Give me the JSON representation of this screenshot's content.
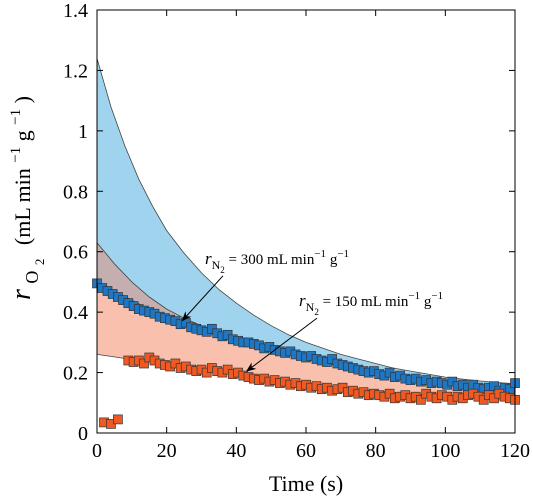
{
  "chart_data": {
    "type": "scatter",
    "xlabel": "Time (s)",
    "ylabel": {
      "main": "r",
      "sub": "O",
      "subsub": "2",
      "unit_prefix": "(mL min",
      "unit_exp1": "−1",
      "unit_mid": " g",
      "unit_exp2": "−1",
      "unit_suffix": ")"
    },
    "xlim": [
      0,
      120
    ],
    "ylim": [
      0,
      1.4
    ],
    "x_ticks": [
      "0",
      "20",
      "40",
      "60",
      "80",
      "100",
      "120"
    ],
    "y_ticks": [
      "0",
      "0.2",
      "0.4",
      "0.6",
      "0.8",
      "1",
      "1.2",
      "1.4"
    ],
    "grid": false,
    "colors": {
      "series_300": "#1f77c4",
      "series_150": "#f05a22",
      "band_300": "#9fd3ee",
      "band_150": "#f9c1ad",
      "band_overlap": "#c4aeb0"
    },
    "bands": [
      {
        "name_ref": "300",
        "upper": [
          [
            0,
            1.24
          ],
          [
            4,
            1.08
          ],
          [
            8,
            0.95
          ],
          [
            12,
            0.84
          ],
          [
            16,
            0.75
          ],
          [
            20,
            0.67
          ],
          [
            25,
            0.595
          ],
          [
            30,
            0.53
          ],
          [
            35,
            0.475
          ],
          [
            40,
            0.43
          ],
          [
            45,
            0.39
          ],
          [
            50,
            0.355
          ],
          [
            55,
            0.325
          ],
          [
            60,
            0.3
          ],
          [
            65,
            0.28
          ],
          [
            70,
            0.26
          ],
          [
            75,
            0.245
          ],
          [
            80,
            0.23
          ],
          [
            85,
            0.215
          ],
          [
            90,
            0.205
          ],
          [
            95,
            0.195
          ],
          [
            100,
            0.185
          ],
          [
            105,
            0.178
          ],
          [
            110,
            0.172
          ],
          [
            115,
            0.167
          ],
          [
            120,
            0.162
          ]
        ],
        "lower": [
          [
            0,
            0.5
          ],
          [
            5,
            0.47
          ],
          [
            10,
            0.44
          ],
          [
            15,
            0.41
          ],
          [
            20,
            0.385
          ],
          [
            25,
            0.36
          ],
          [
            30,
            0.34
          ],
          [
            35,
            0.32
          ],
          [
            40,
            0.3
          ],
          [
            45,
            0.285
          ],
          [
            50,
            0.27
          ],
          [
            55,
            0.258
          ],
          [
            60,
            0.245
          ],
          [
            65,
            0.233
          ],
          [
            70,
            0.222
          ],
          [
            75,
            0.212
          ],
          [
            80,
            0.2
          ],
          [
            85,
            0.19
          ],
          [
            90,
            0.182
          ],
          [
            95,
            0.175
          ],
          [
            100,
            0.168
          ],
          [
            105,
            0.162
          ],
          [
            110,
            0.156
          ],
          [
            115,
            0.15
          ],
          [
            120,
            0.145
          ]
        ]
      },
      {
        "name_ref": "150",
        "upper": [
          [
            0,
            0.63
          ],
          [
            5,
            0.56
          ],
          [
            10,
            0.5
          ],
          [
            15,
            0.45
          ],
          [
            20,
            0.41
          ],
          [
            25,
            0.38
          ],
          [
            30,
            0.355
          ],
          [
            35,
            0.33
          ],
          [
            40,
            0.31
          ],
          [
            45,
            0.29
          ],
          [
            50,
            0.273
          ],
          [
            55,
            0.258
          ],
          [
            60,
            0.245
          ],
          [
            65,
            0.232
          ],
          [
            70,
            0.22
          ],
          [
            75,
            0.21
          ],
          [
            80,
            0.2
          ],
          [
            85,
            0.19
          ],
          [
            90,
            0.182
          ],
          [
            95,
            0.175
          ],
          [
            100,
            0.168
          ],
          [
            105,
            0.162
          ],
          [
            110,
            0.156
          ],
          [
            115,
            0.15
          ],
          [
            120,
            0.145
          ]
        ],
        "lower": [
          [
            0,
            0.26
          ],
          [
            5,
            0.252
          ],
          [
            10,
            0.243
          ],
          [
            15,
            0.235
          ],
          [
            20,
            0.226
          ],
          [
            25,
            0.218
          ],
          [
            30,
            0.21
          ],
          [
            35,
            0.202
          ],
          [
            40,
            0.194
          ],
          [
            45,
            0.186
          ],
          [
            50,
            0.178
          ],
          [
            55,
            0.171
          ],
          [
            60,
            0.164
          ],
          [
            65,
            0.157
          ],
          [
            70,
            0.151
          ],
          [
            75,
            0.145
          ],
          [
            80,
            0.139
          ],
          [
            85,
            0.134
          ],
          [
            90,
            0.129
          ],
          [
            95,
            0.125
          ],
          [
            100,
            0.121
          ],
          [
            105,
            0.117
          ],
          [
            110,
            0.113
          ],
          [
            115,
            0.11
          ],
          [
            120,
            0.107
          ]
        ]
      }
    ],
    "series": [
      {
        "id": "300",
        "x": [
          0,
          1.5,
          3,
          4.5,
          6,
          7.5,
          9,
          10.5,
          12,
          13.5,
          15,
          16.5,
          18,
          19.5,
          21,
          22.5,
          24,
          25.5,
          27,
          28.5,
          30,
          31.5,
          33,
          34.5,
          36,
          37.5,
          39,
          40.5,
          42,
          43.5,
          45,
          46.5,
          48,
          49.5,
          51,
          52.5,
          54,
          55.5,
          57,
          58.5,
          60,
          61.5,
          63,
          64.5,
          66,
          67.5,
          69,
          70.5,
          72,
          73.5,
          75,
          76.5,
          78,
          79.5,
          81,
          82.5,
          84,
          85.5,
          87,
          88.5,
          90,
          91.5,
          93,
          94.5,
          96,
          97.5,
          99,
          100.5,
          102,
          103.5,
          105,
          106.5,
          108,
          109.5,
          111,
          112.5,
          114,
          115.5,
          117,
          118.5,
          120
        ],
        "values": [
          0.495,
          0.48,
          0.47,
          0.46,
          0.45,
          0.44,
          0.43,
          0.42,
          0.41,
          0.405,
          0.4,
          0.395,
          0.385,
          0.38,
          0.375,
          0.37,
          0.36,
          0.365,
          0.35,
          0.345,
          0.34,
          0.335,
          0.345,
          0.33,
          0.32,
          0.325,
          0.31,
          0.305,
          0.3,
          0.3,
          0.295,
          0.29,
          0.28,
          0.285,
          0.275,
          0.27,
          0.265,
          0.27,
          0.26,
          0.255,
          0.25,
          0.255,
          0.245,
          0.24,
          0.235,
          0.245,
          0.23,
          0.225,
          0.22,
          0.215,
          0.21,
          0.205,
          0.2,
          0.205,
          0.195,
          0.19,
          0.2,
          0.185,
          0.19,
          0.18,
          0.175,
          0.18,
          0.17,
          0.175,
          0.165,
          0.17,
          0.165,
          0.16,
          0.17,
          0.155,
          0.16,
          0.15,
          0.16,
          0.15,
          0.145,
          0.15,
          0.155,
          0.14,
          0.15,
          0.145,
          0.165
        ]
      },
      {
        "id": "150",
        "x": [
          2,
          4,
          6,
          9,
          10.5,
          12,
          13.5,
          15,
          16.5,
          18,
          19.5,
          21,
          22.5,
          24,
          25.5,
          27,
          28.5,
          30,
          31.5,
          33,
          34.5,
          36,
          37.5,
          39,
          40.5,
          42,
          43.5,
          45,
          46.5,
          48,
          49.5,
          51,
          52.5,
          54,
          55.5,
          57,
          58.5,
          60,
          61.5,
          63,
          64.5,
          66,
          67.5,
          69,
          70.5,
          72,
          73.5,
          75,
          76.5,
          78,
          79.5,
          81,
          82.5,
          84,
          85.5,
          87,
          88.5,
          90,
          91.5,
          93,
          94.5,
          96,
          97.5,
          99,
          100.5,
          102,
          103.5,
          105,
          106.5,
          108,
          109.5,
          111,
          112.5,
          114,
          115.5,
          117,
          118.5,
          120
        ],
        "values": [
          0.035,
          0.03,
          0.045,
          0.24,
          0.235,
          0.24,
          0.23,
          0.25,
          0.24,
          0.23,
          0.225,
          0.22,
          0.23,
          0.215,
          0.22,
          0.21,
          0.205,
          0.21,
          0.2,
          0.215,
          0.205,
          0.2,
          0.21,
          0.195,
          0.2,
          0.19,
          0.185,
          0.18,
          0.175,
          0.18,
          0.17,
          0.175,
          0.165,
          0.17,
          0.16,
          0.165,
          0.155,
          0.16,
          0.15,
          0.155,
          0.145,
          0.15,
          0.14,
          0.145,
          0.15,
          0.135,
          0.14,
          0.13,
          0.135,
          0.125,
          0.13,
          0.125,
          0.12,
          0.13,
          0.115,
          0.12,
          0.125,
          0.115,
          0.12,
          0.11,
          0.13,
          0.12,
          0.115,
          0.125,
          0.12,
          0.11,
          0.12,
          0.115,
          0.125,
          0.13,
          0.12,
          0.11,
          0.125,
          0.115,
          0.13,
          0.12,
          0.115,
          0.11
        ]
      }
    ],
    "annotations": [
      {
        "id": "300",
        "text_main": "r",
        "text_sub": "N",
        "text_subsub": "2",
        "text_rest": " = 300 mL min",
        "exp1": "−1",
        "mid": " g",
        "exp2": "−1",
        "label_at": [
          31,
          0.56
        ],
        "arrow_to": [
          24.5,
          0.372
        ]
      },
      {
        "id": "150",
        "text_main": "r",
        "text_sub": "N",
        "text_subsub": "2",
        "text_rest": " = 150 mL min",
        "exp1": "−1",
        "mid": " g",
        "exp2": "−1",
        "label_at": [
          58,
          0.42
        ],
        "arrow_to": [
          43,
          0.205
        ]
      }
    ]
  }
}
